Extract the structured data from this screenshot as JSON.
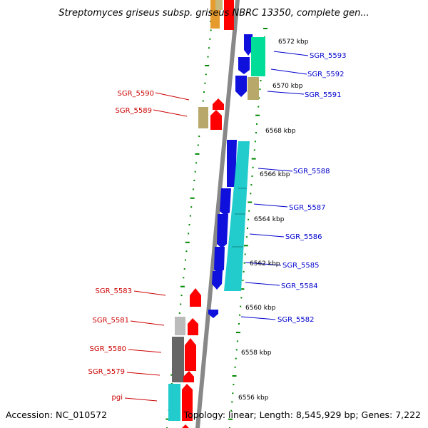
{
  "title": "Streptomyces griseus subsp. griseus NBRC 13350, complete gen...",
  "footer": {
    "accession": "Accession: NC_010572",
    "topology": "Topology: linear; Length: 8,545,929 bp; Genes: 7,222"
  },
  "colors": {
    "forward_label": "#cc0000",
    "reverse_label": "#0000cc",
    "tick": "#008800",
    "backbone": "#888888"
  },
  "kbp_labels": [
    "6572 kbp",
    "6570 kbp",
    "6568 kbp",
    "6566 kbp",
    "6564 kbp",
    "6562 kbp",
    "6560 kbp",
    "6558 kbp",
    "6556 kbp"
  ],
  "genes_left": [
    "SGR_5590",
    "SGR_5589",
    "SGR_5583",
    "SGR_5581",
    "SGR_5580",
    "SGR_5579",
    "pgi"
  ],
  "genes_right": [
    "SGR_5593",
    "SGR_5592",
    "SGR_5591",
    "SGR_5588",
    "SGR_5587",
    "SGR_5586",
    "SGR_5585",
    "SGR_5584",
    "SGR_5582"
  ]
}
